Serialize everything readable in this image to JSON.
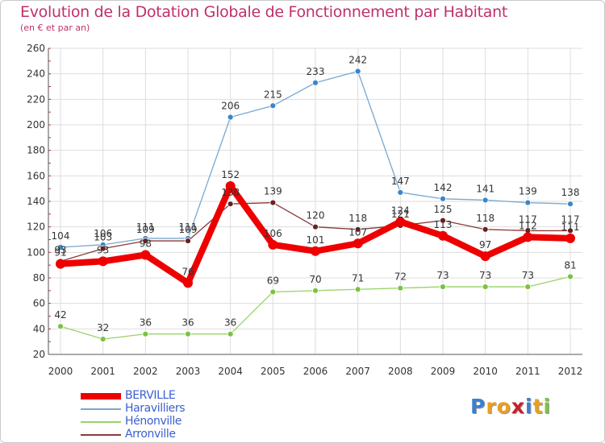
{
  "title": "Evolution de la Dotation Globale de Fonctionnement par Habitant",
  "subtitle": "(en € et par an)",
  "chart_data": {
    "type": "line",
    "title": "Evolution de la Dotation Globale de Fonctionnement par Habitant",
    "subtitle": "(en € et par an)",
    "x": [
      "2000",
      "2001",
      "2002",
      "2003",
      "2004",
      "2005",
      "2006",
      "2007",
      "2008",
      "2009",
      "2010",
      "2011",
      "2012"
    ],
    "ylim": [
      20,
      260
    ],
    "yticks": [
      20,
      40,
      60,
      80,
      100,
      120,
      140,
      160,
      180,
      200,
      220,
      240,
      260
    ],
    "grid": true,
    "legend_position": "bottom-left",
    "series": [
      {
        "name": "BERVILLE",
        "color": "#ee0000",
        "values": [
          91,
          93,
          98,
          76,
          152,
          106,
          101,
          107,
          124,
          113,
          97,
          112,
          111
        ]
      },
      {
        "name": "Haravilliers",
        "color": "#78a8d0",
        "marker_color": "#3a86c8",
        "values": [
          104,
          106,
          111,
          111,
          206,
          215,
          233,
          242,
          147,
          142,
          141,
          139,
          138
        ]
      },
      {
        "name": "Hénonville",
        "color": "#9ad26a",
        "marker_color": "#7cc242",
        "values": [
          42,
          32,
          36,
          36,
          36,
          69,
          70,
          71,
          72,
          73,
          73,
          73,
          81
        ]
      },
      {
        "name": "Arronville",
        "color": "#8a3a3a",
        "marker_color": "#6b2020",
        "values": [
          93,
          103,
          109,
          109,
          138,
          139,
          120,
          118,
          121,
          125,
          118,
          117,
          117
        ]
      }
    ]
  },
  "logo": {
    "letters": [
      "P",
      "r",
      "o",
      "x",
      "i",
      "t",
      "i"
    ],
    "colors": [
      "#3a7fd0",
      "#e8a020",
      "#e8a020",
      "#c8202a",
      "#3a7fd0",
      "#e8a020",
      "#7cc242"
    ]
  }
}
